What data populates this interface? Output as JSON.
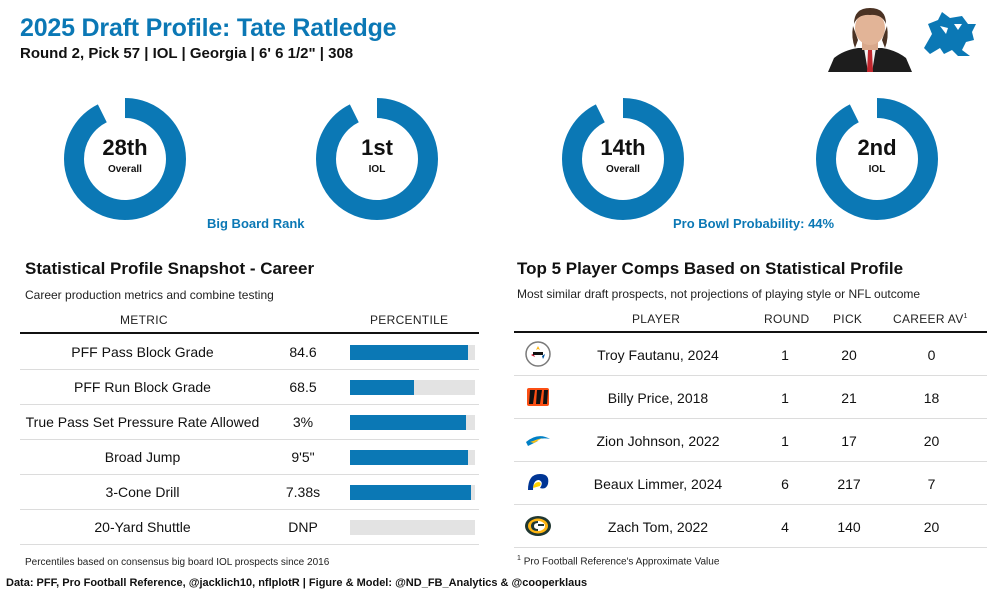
{
  "header": {
    "title": "2025 Draft Profile: Tate Ratledge",
    "subtitle": "Round 2, Pick 57 | IOL | Georgia | 6' 6 1/2\" | 308"
  },
  "colors": {
    "accent": "#0b78b5",
    "track": "#e3e3e3"
  },
  "donuts": {
    "big_board_label": "Big Board Rank",
    "pro_bowl_label": "Pro Bowl Probability: 44%",
    "items": [
      {
        "value": "28th",
        "caption": "Overall",
        "fraction": 0.925
      },
      {
        "value": "1st",
        "caption": "IOL",
        "fraction": 0.925
      },
      {
        "value": "14th",
        "caption": "Overall",
        "fraction": 0.925
      },
      {
        "value": "2nd",
        "caption": "IOL",
        "fraction": 0.925
      }
    ]
  },
  "stats": {
    "title": "Statistical Profile Snapshot - Career",
    "subtitle": "Career production metrics and combine testing",
    "col_metric": "METRIC",
    "col_percentile": "PERCENTILE",
    "footnote": "Percentiles based on consensus big board IOL prospects since 2016",
    "rows": [
      {
        "metric": "PFF Pass Block Grade",
        "value": "84.6",
        "percentile": 94
      },
      {
        "metric": "PFF Run Block Grade",
        "value": "68.5",
        "percentile": 51
      },
      {
        "metric": "True Pass Set Pressure Rate Allowed",
        "value": "3%",
        "percentile": 93
      },
      {
        "metric": "Broad Jump",
        "value": "9'5\"",
        "percentile": 94
      },
      {
        "metric": "3-Cone Drill",
        "value": "7.38s",
        "percentile": 97
      },
      {
        "metric": "20-Yard Shuttle",
        "value": "DNP",
        "percentile": 0
      }
    ]
  },
  "comps": {
    "title": "Top 5 Player Comps Based on Statistical Profile",
    "subtitle": "Most similar draft prospects, not projections of playing style or NFL outcome",
    "col_player": "PLAYER",
    "col_round": "ROUND",
    "col_pick": "PICK",
    "col_av": "CAREER AV",
    "col_av_sup": "1",
    "footnote_sup": "1",
    "footnote": "Pro Football Reference's Approximate Value",
    "rows": [
      {
        "player": "Troy Fautanu, 2024",
        "round": "1",
        "pick": "20",
        "av": "0",
        "logo": "steelers-logo"
      },
      {
        "player": "Billy Price, 2018",
        "round": "1",
        "pick": "21",
        "av": "18",
        "logo": "bengals-logo"
      },
      {
        "player": "Zion Johnson, 2022",
        "round": "1",
        "pick": "17",
        "av": "20",
        "logo": "chargers-logo"
      },
      {
        "player": "Beaux Limmer, 2024",
        "round": "6",
        "pick": "217",
        "av": "7",
        "logo": "rams-logo"
      },
      {
        "player": "Zach Tom, 2022",
        "round": "4",
        "pick": "140",
        "av": "20",
        "logo": "packers-logo"
      }
    ]
  },
  "footer": "Data: PFF, Pro Football Reference, @jacklich10, nflplotR | Figure & Model: @ND_FB_Analytics & @cooperklaus",
  "chart_data": [
    {
      "type": "bar",
      "title": "Statistical Profile Snapshot - Career",
      "categories": [
        "PFF Pass Block Grade",
        "PFF Run Block Grade",
        "True Pass Set Pressure Rate Allowed",
        "Broad Jump",
        "3-Cone Drill",
        "20-Yard Shuttle"
      ],
      "values": [
        94,
        51,
        93,
        94,
        97,
        0
      ],
      "ylabel": "PERCENTILE",
      "ylim": [
        0,
        100
      ]
    },
    {
      "type": "table",
      "title": "Top 5 Player Comps Based on Statistical Profile",
      "columns": [
        "PLAYER",
        "ROUND",
        "PICK",
        "CAREER AV"
      ],
      "rows": [
        [
          "Troy Fautanu, 2024",
          "1",
          "20",
          "0"
        ],
        [
          "Billy Price, 2018",
          "1",
          "21",
          "18"
        ],
        [
          "Zion Johnson, 2022",
          "1",
          "17",
          "20"
        ],
        [
          "Beaux Limmer, 2024",
          "6",
          "217",
          "7"
        ],
        [
          "Zach Tom, 2022",
          "4",
          "140",
          "20"
        ]
      ]
    }
  ]
}
